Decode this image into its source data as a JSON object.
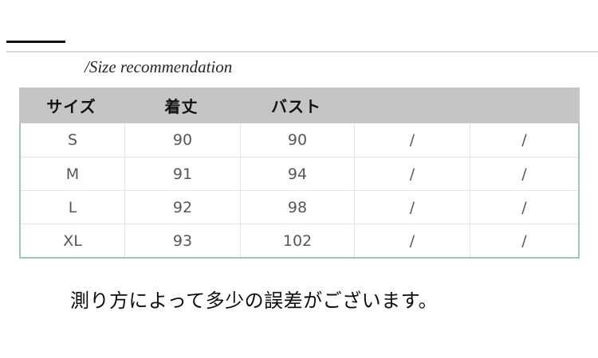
{
  "section": {
    "title": "/Size recommendation"
  },
  "size_table": {
    "headers": [
      "サイズ",
      "着丈",
      "バスト",
      "",
      ""
    ],
    "rows": [
      {
        "cells": [
          "S",
          "90",
          "90",
          "/",
          "/"
        ]
      },
      {
        "cells": [
          "M",
          "91",
          "94",
          "/",
          "/"
        ]
      },
      {
        "cells": [
          "L",
          "92",
          "98",
          "/",
          "/"
        ]
      },
      {
        "cells": [
          "XL",
          "93",
          "102",
          "/",
          "/"
        ]
      }
    ]
  },
  "note": {
    "text": "測り方によって多少の誤差がございます。"
  },
  "colors": {
    "header_bg": "#c5c5c5",
    "table_outer_border": "#9fc6c4",
    "grid_line": "#e4e4e4",
    "header_text": "#121212",
    "body_text": "#575757",
    "accent_line": "#111111",
    "divider": "#d9d9d9",
    "note_text": "#0d0d0d"
  }
}
